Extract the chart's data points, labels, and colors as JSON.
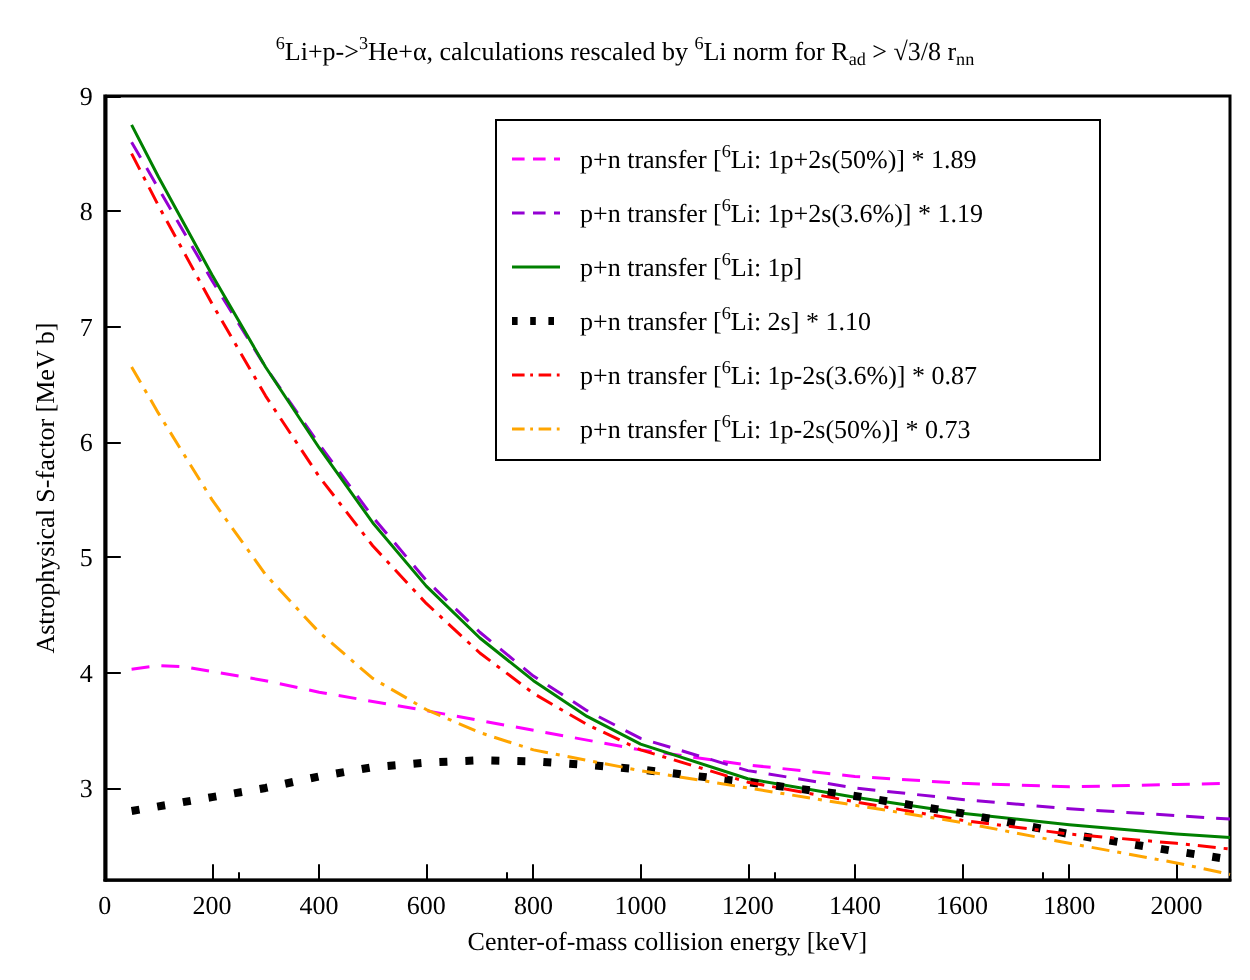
{
  "chart_data": {
    "type": "line",
    "title": "$^{6}$Li+p->$^{3}$He+α, calculations rescaled by $^{6}$Li norm for R$_{ad}$ > √3/8 r$_{nn}$",
    "xlabel": "Center-of-mass collision energy [keV]",
    "ylabel": "Astrophysical S-factor [MeV b]",
    "xlim": [
      0,
      2100
    ],
    "xticks": [
      0,
      200,
      400,
      600,
      800,
      1000,
      1200,
      1400,
      1600,
      1800,
      2000
    ],
    "ylim": [
      2.2,
      9
    ],
    "yticks": [
      3,
      4,
      5,
      6,
      7,
      8,
      9
    ],
    "grid": false,
    "legend": "top right",
    "marker": "none",
    "series": [
      {
        "name": "p+n transfer [$^{6}$Li: 1p+2s(50%)] * 1.89",
        "color": "#ff00ff",
        "line_style": "dashed",
        "x": [
          50,
          100,
          150,
          300,
          400,
          600,
          800,
          1000,
          1200,
          1400,
          1600,
          1800,
          2000,
          2100
        ],
        "values": [
          4.03,
          4.06,
          4.05,
          3.93,
          3.83,
          3.67,
          3.5,
          3.33,
          3.2,
          3.1,
          3.04,
          3.01,
          3.03,
          3.04
        ]
      },
      {
        "name": "p+n transfer [$^{6}$Li: 1p+2s(3.6%)] * 1.19",
        "color": "#9400d3",
        "line_style": "dashed",
        "x": [
          50,
          100,
          200,
          300,
          400,
          500,
          600,
          700,
          800,
          900,
          1000,
          1200,
          1400,
          1600,
          1800,
          2000,
          2100
        ],
        "values": [
          8.6,
          8.2,
          7.4,
          6.65,
          5.98,
          5.35,
          4.8,
          4.35,
          3.97,
          3.67,
          3.43,
          3.15,
          3.0,
          2.9,
          2.82,
          2.76,
          2.73
        ]
      },
      {
        "name": "p+n transfer [$^{6}$Li: 1p]",
        "color": "#008000",
        "line_style": "solid",
        "x": [
          50,
          100,
          200,
          300,
          400,
          500,
          600,
          700,
          800,
          900,
          1000,
          1200,
          1400,
          1600,
          1800,
          2000,
          2100
        ],
        "values": [
          8.75,
          8.3,
          7.45,
          6.65,
          5.95,
          5.3,
          4.75,
          4.3,
          3.93,
          3.62,
          3.38,
          3.08,
          2.92,
          2.78,
          2.68,
          2.6,
          2.57
        ]
      },
      {
        "name": "p+n transfer [$^{6}$Li: 2s] * 1.10",
        "color": "#000000",
        "line_style": "dotted",
        "x": [
          50,
          200,
          300,
          400,
          500,
          600,
          700,
          800,
          900,
          1000,
          1200,
          1400,
          1600,
          1800,
          2000,
          2100
        ],
        "values": [
          2.8,
          2.92,
          3.0,
          3.1,
          3.18,
          3.22,
          3.24,
          3.23,
          3.2,
          3.16,
          3.05,
          2.93,
          2.78,
          2.6,
          2.45,
          2.38
        ]
      },
      {
        "name": "p+n transfer [$^{6}$Li: 1p-2s(3.6%)] * 0.87",
        "color": "#ff0000",
        "line_style": "dashdot",
        "x": [
          50,
          100,
          200,
          300,
          400,
          500,
          600,
          700,
          800,
          900,
          1000,
          1200,
          1400,
          1600,
          1800,
          2000,
          2100
        ],
        "values": [
          8.5,
          8.05,
          7.2,
          6.4,
          5.7,
          5.1,
          4.6,
          4.17,
          3.82,
          3.55,
          3.33,
          3.05,
          2.88,
          2.72,
          2.6,
          2.52,
          2.47
        ]
      },
      {
        "name": "p+n transfer [$^{6}$Li: 1p-2s(50%)] * 0.73",
        "color": "#ffa500",
        "line_style": "dashdot",
        "x": [
          50,
          100,
          200,
          300,
          400,
          500,
          600,
          700,
          800,
          1000,
          1200,
          1400,
          1600,
          1800,
          2000,
          2100
        ],
        "values": [
          6.65,
          6.25,
          5.5,
          4.85,
          4.35,
          3.95,
          3.68,
          3.48,
          3.33,
          3.15,
          3.0,
          2.85,
          2.7,
          2.52,
          2.35,
          2.25
        ]
      }
    ]
  }
}
